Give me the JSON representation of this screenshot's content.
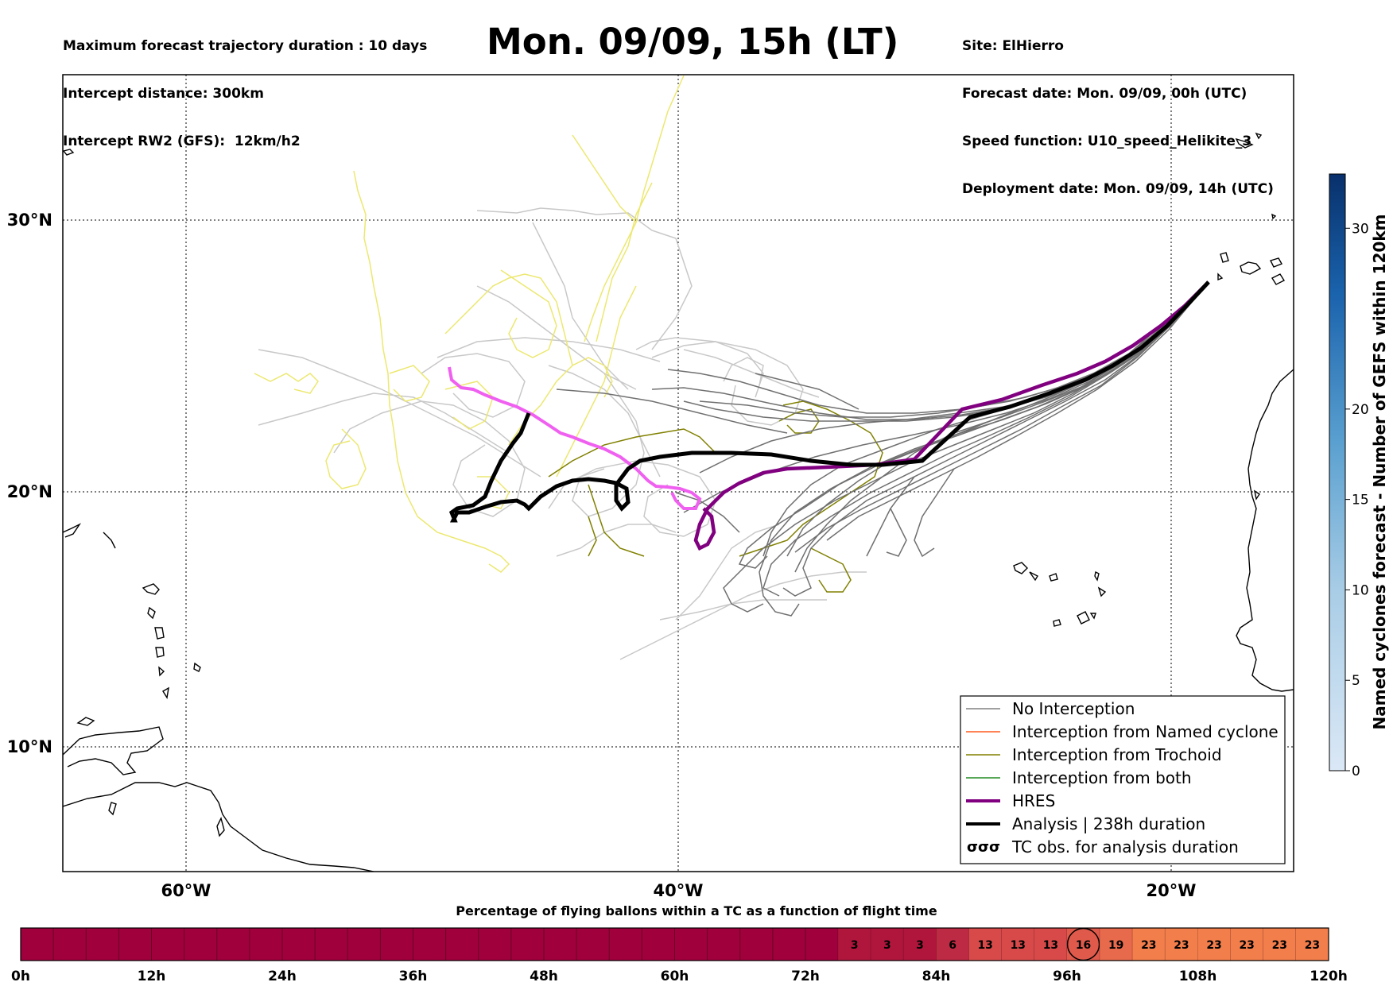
{
  "header": {
    "left_lines": [
      "Maximum forecast trajectory duration : 10 days",
      "Intercept distance: 300km",
      "Intercept RW2 (GFS):  12km/h2"
    ],
    "title": "Mon. 09/09, 15h (LT)",
    "right_lines": [
      "Site: ElHierro",
      "Forecast date: Mon. 09/09, 00h (UTC)",
      "Speed function: U10_speed_Helikite_3",
      "Deployment date: Mon. 09/09, 14h (UTC)"
    ]
  },
  "map": {
    "lon_labels": [
      "60°W",
      "40°W",
      "20°W"
    ],
    "lat_labels": [
      "30°N",
      "20°N",
      "10°N"
    ],
    "legend": [
      {
        "label": "No Interception",
        "color": "#808080",
        "style": "thin"
      },
      {
        "label": "Interception from Named cyclone",
        "color": "#ff5a1e",
        "style": "thin"
      },
      {
        "label": "Interception from Trochoid",
        "color": "#808000",
        "style": "thin"
      },
      {
        "label": "Interception from both",
        "color": "#228b22",
        "style": "thin"
      },
      {
        "label": "HRES",
        "color": "#800080",
        "style": "thick"
      },
      {
        "label": "Analysis | 238h duration",
        "color": "#000000",
        "style": "thick"
      },
      {
        "label": "TC obs. for analysis duration",
        "color": "#000000",
        "style": "glyph"
      }
    ],
    "colors": {
      "no_interception": "#707070",
      "light_member": "#c8c8c8",
      "yellow_member": "#ece870",
      "trochoid": "#808000",
      "hres": "#800080",
      "analysis": "#000000",
      "magenta_track": "#f060f0",
      "coast": "#000000"
    }
  },
  "colorbar": {
    "label": "Named cyclones forecast - Number of GEFS within 120km",
    "ticks": [
      "0",
      "5",
      "10",
      "15",
      "20",
      "30"
    ]
  },
  "timeline": {
    "title": "Percentage of flying ballons within a TC as a function of flight time",
    "tick_labels": [
      "0h",
      "12h",
      "24h",
      "36h",
      "48h",
      "60h",
      "72h",
      "84h",
      "96h",
      "108h",
      "120h"
    ],
    "cell_values": [
      "3",
      "3",
      "3",
      "6",
      "13",
      "13",
      "13",
      "16",
      "19",
      "23",
      "23",
      "23",
      "23",
      "23",
      "23"
    ],
    "base_color": "#a0003c",
    "circled_value_index": 7
  }
}
